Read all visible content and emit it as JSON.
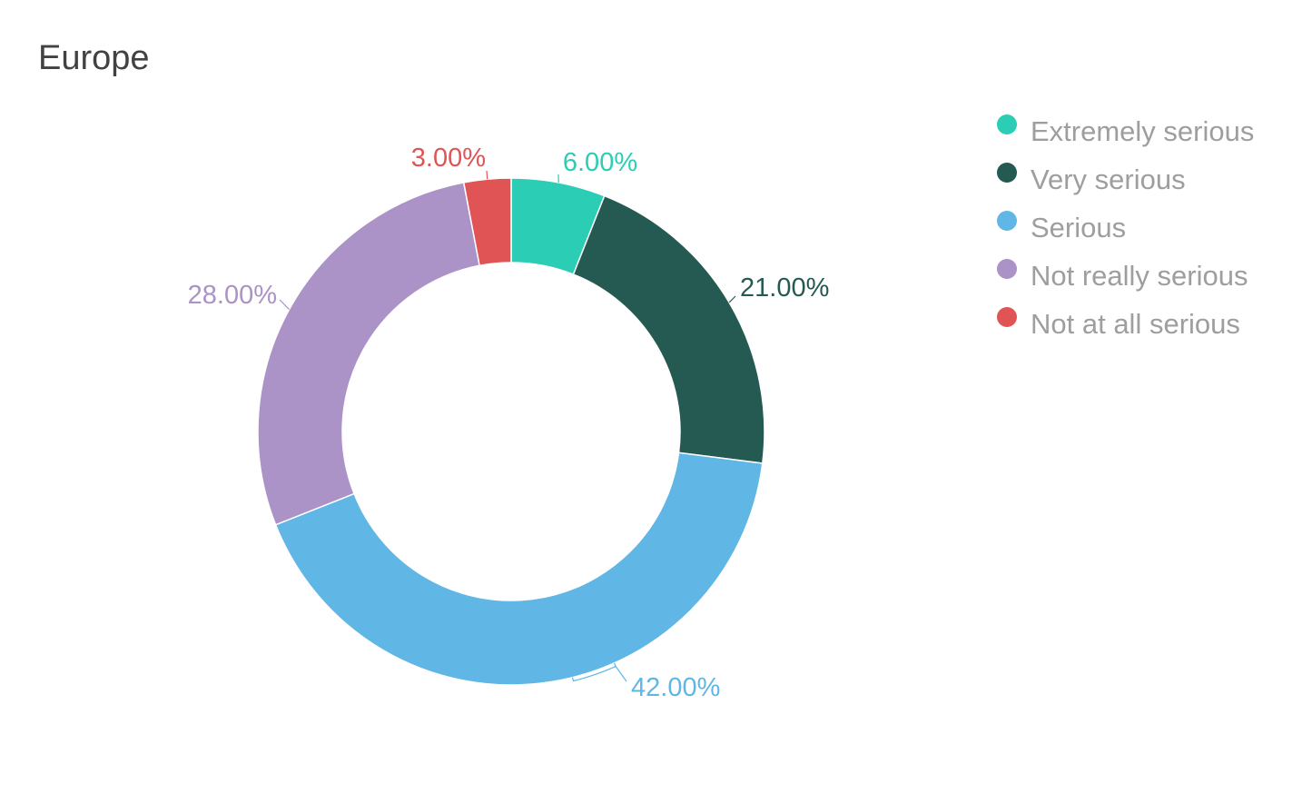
{
  "chart_data": {
    "type": "pie",
    "variant": "donut",
    "title": "Europe",
    "categories": [
      "Extremely serious",
      "Very serious",
      "Serious",
      "Not really serious",
      "Not at all serious"
    ],
    "values": [
      6,
      21,
      42,
      28,
      3
    ],
    "labels": [
      "6.00%",
      "21.00%",
      "42.00%",
      "28.00%",
      "3.00%"
    ],
    "colors": [
      "#2bcdb4",
      "#255a52",
      "#60b6e4",
      "#ab92c7",
      "#e05455"
    ],
    "unit": "%",
    "legend_position": "top-right",
    "start_angle": "12 o'clock",
    "direction": "clockwise"
  }
}
